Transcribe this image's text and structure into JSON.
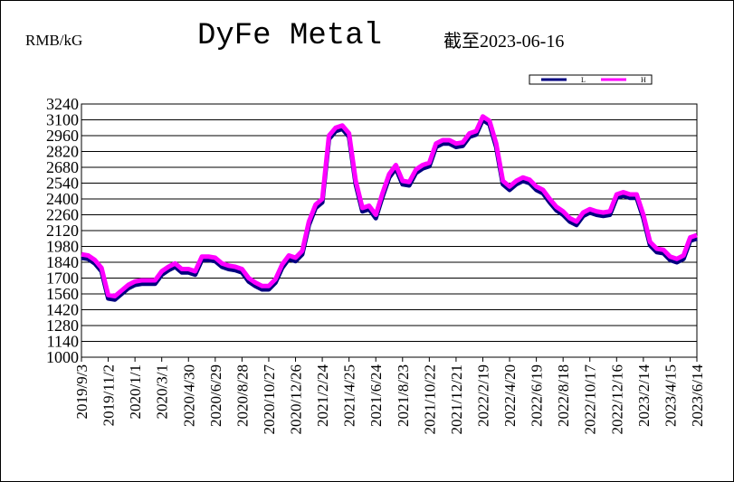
{
  "chart_data": {
    "type": "line",
    "title": "DyFe Metal",
    "unit_label": "RMB/kG",
    "subtitle": "截至2023-06-16",
    "categories": [
      "2019/9/3",
      null,
      null,
      null,
      "2019/11/2",
      null,
      null,
      null,
      "2020/1/1",
      null,
      null,
      null,
      "2020/3/1",
      null,
      null,
      null,
      "2020/4/30",
      null,
      null,
      null,
      "2020/6/29",
      null,
      null,
      null,
      "2020/8/28",
      null,
      null,
      null,
      "2020/10/27",
      null,
      null,
      null,
      "2020/12/26",
      null,
      null,
      null,
      "2021/2/24",
      null,
      null,
      null,
      "2021/4/25",
      null,
      null,
      null,
      "2021/6/24",
      null,
      null,
      null,
      "2021/8/23",
      null,
      null,
      null,
      "2021/10/22",
      null,
      null,
      null,
      "2021/12/21",
      null,
      null,
      null,
      "2022/2/19",
      null,
      null,
      null,
      "2022/4/20",
      null,
      null,
      null,
      "2022/6/19",
      null,
      null,
      null,
      "2022/8/18",
      null,
      null,
      null,
      "2022/10/17",
      null,
      null,
      null,
      "2022/12/16",
      null,
      null,
      null,
      "2023/2/14",
      null,
      null,
      null,
      "2023/4/15",
      null,
      null,
      null,
      "2023/6/14"
    ],
    "series": [
      {
        "name": "L",
        "color": "#000080",
        "values": [
          1880,
          1870,
          1830,
          1760,
          1520,
          1510,
          1560,
          1610,
          1640,
          1650,
          1650,
          1650,
          1730,
          1770,
          1800,
          1750,
          1750,
          1730,
          1860,
          1860,
          1850,
          1800,
          1780,
          1770,
          1750,
          1670,
          1630,
          1600,
          1600,
          1660,
          1790,
          1870,
          1850,
          1910,
          2170,
          2320,
          2370,
          2930,
          3000,
          3020,
          2950,
          2530,
          2290,
          2310,
          2230,
          2420,
          2590,
          2670,
          2530,
          2520,
          2630,
          2670,
          2690,
          2860,
          2890,
          2890,
          2860,
          2870,
          2950,
          2970,
          3100,
          3060,
          2860,
          2530,
          2480,
          2530,
          2560,
          2540,
          2480,
          2450,
          2370,
          2300,
          2260,
          2200,
          2170,
          2250,
          2280,
          2260,
          2250,
          2260,
          2410,
          2430,
          2410,
          2410,
          2230,
          1990,
          1930,
          1920,
          1860,
          1840,
          1870,
          2030,
          2050
        ]
      },
      {
        "name": "H",
        "color": "#ff00ff",
        "values": [
          1910,
          1900,
          1860,
          1790,
          1550,
          1540,
          1590,
          1640,
          1670,
          1680,
          1680,
          1680,
          1760,
          1800,
          1830,
          1780,
          1780,
          1760,
          1890,
          1890,
          1880,
          1830,
          1810,
          1800,
          1780,
          1700,
          1660,
          1630,
          1630,
          1690,
          1820,
          1900,
          1880,
          1940,
          2200,
          2350,
          2400,
          2960,
          3030,
          3050,
          2980,
          2560,
          2320,
          2340,
          2260,
          2450,
          2620,
          2700,
          2560,
          2550,
          2660,
          2700,
          2720,
          2890,
          2920,
          2920,
          2890,
          2900,
          2980,
          3000,
          3130,
          3090,
          2890,
          2560,
          2510,
          2560,
          2590,
          2570,
          2510,
          2480,
          2400,
          2330,
          2290,
          2230,
          2200,
          2280,
          2310,
          2290,
          2280,
          2290,
          2440,
          2460,
          2440,
          2440,
          2260,
          2020,
          1960,
          1950,
          1890,
          1870,
          1900,
          2060,
          2080
        ]
      }
    ],
    "ylim": [
      1000,
      3240
    ],
    "yticks": [
      1000,
      1140,
      1280,
      1420,
      1560,
      1700,
      1840,
      1980,
      2120,
      2260,
      2400,
      2540,
      2680,
      2820,
      2960,
      3100,
      3240
    ],
    "grid": true
  }
}
